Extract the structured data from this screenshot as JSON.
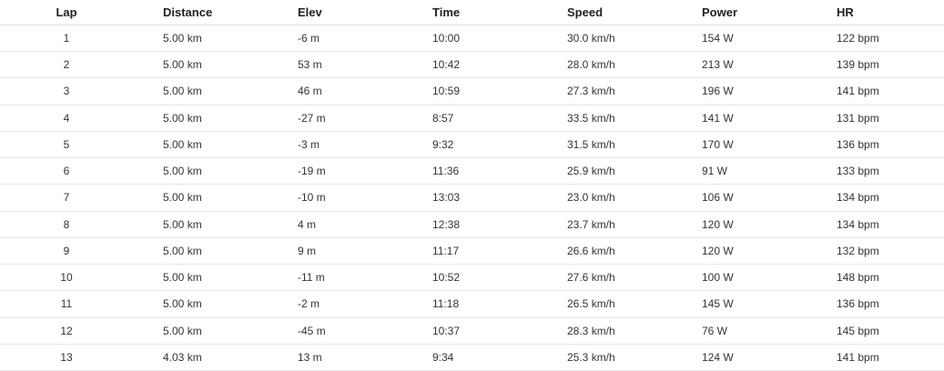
{
  "table": {
    "headers": [
      "Lap",
      "Distance",
      "Elev",
      "Time",
      "Speed",
      "Power",
      "HR"
    ],
    "rows": [
      [
        "1",
        "5.00 km",
        "-6 m",
        "10:00",
        "30.0 km/h",
        "154 W",
        "122 bpm"
      ],
      [
        "2",
        "5.00 km",
        "53 m",
        "10:42",
        "28.0 km/h",
        "213 W",
        "139 bpm"
      ],
      [
        "3",
        "5.00 km",
        "46 m",
        "10:59",
        "27.3 km/h",
        "196 W",
        "141 bpm"
      ],
      [
        "4",
        "5.00 km",
        "-27 m",
        "8:57",
        "33.5 km/h",
        "141 W",
        "131 bpm"
      ],
      [
        "5",
        "5.00 km",
        "-3 m",
        "9:32",
        "31.5 km/h",
        "170 W",
        "136 bpm"
      ],
      [
        "6",
        "5.00 km",
        "-19 m",
        "11:36",
        "25.9 km/h",
        "91 W",
        "133 bpm"
      ],
      [
        "7",
        "5.00 km",
        "-10 m",
        "13:03",
        "23.0 km/h",
        "106 W",
        "134 bpm"
      ],
      [
        "8",
        "5.00 km",
        "4 m",
        "12:38",
        "23.7 km/h",
        "120 W",
        "134 bpm"
      ],
      [
        "9",
        "5.00 km",
        "9 m",
        "11:17",
        "26.6 km/h",
        "120 W",
        "132 bpm"
      ],
      [
        "10",
        "5.00 km",
        "-11 m",
        "10:52",
        "27.6 km/h",
        "100 W",
        "148 bpm"
      ],
      [
        "11",
        "5.00 km",
        "-2 m",
        "11:18",
        "26.5 km/h",
        "145 W",
        "136 bpm"
      ],
      [
        "12",
        "5.00 km",
        "-45 m",
        "10:37",
        "28.3 km/h",
        "76 W",
        "145 bpm"
      ],
      [
        "13",
        "4.03 km",
        "13 m",
        "9:34",
        "25.3 km/h",
        "124 W",
        "141 bpm"
      ]
    ]
  }
}
